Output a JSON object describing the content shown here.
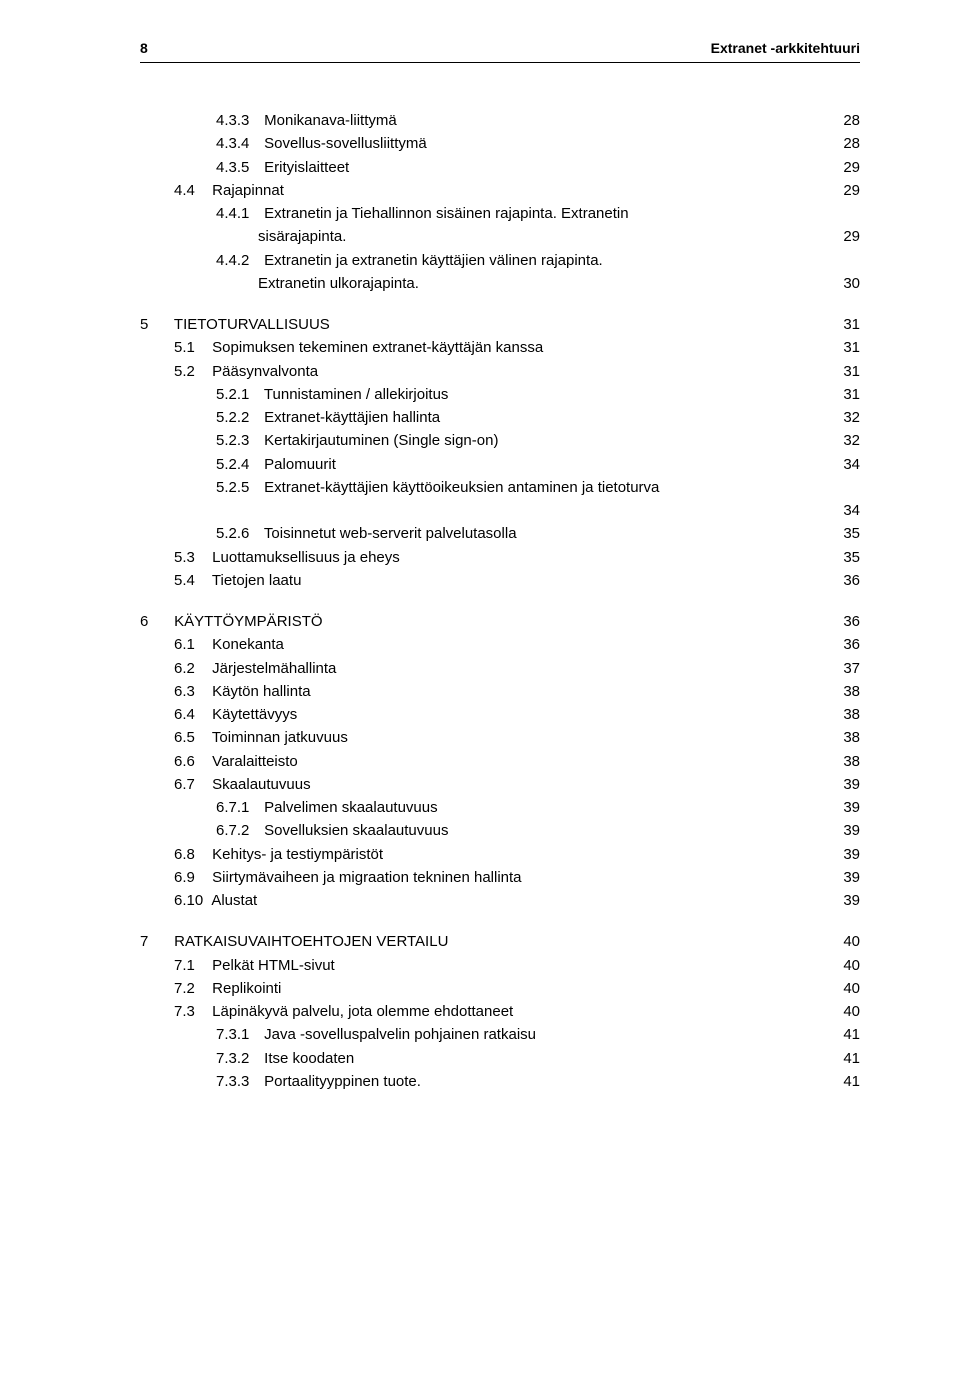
{
  "header": {
    "page_number": "8",
    "title": "Extranet -arkkitehtuuri"
  },
  "toc": [
    {
      "level": "lvl3",
      "first": true,
      "num": "4.3.3",
      "text": "Monikanava-liittymä",
      "page": "28"
    },
    {
      "level": "lvl3",
      "num": "4.3.4",
      "text": "Sovellus-sovellusliittymä",
      "page": "28"
    },
    {
      "level": "lvl3",
      "num": "4.3.5",
      "text": "Erityislaitteet",
      "page": "29"
    },
    {
      "level": "lvl2",
      "num": "4.4",
      "text": "Rajapinnat",
      "page": "29"
    },
    {
      "level": "lvl3",
      "num": "4.4.1",
      "text": "Extranetin ja Tiehallinnon sisäinen rajapinta. Extranetin",
      "page": ""
    },
    {
      "level": "cont",
      "num": "",
      "text": "sisärajapinta.",
      "page": "29"
    },
    {
      "level": "lvl3",
      "num": "4.4.2",
      "text": "Extranetin ja extranetin käyttäjien välinen rajapinta.",
      "page": ""
    },
    {
      "level": "cont",
      "num": "",
      "text": "Extranetin ulkorajapinta.",
      "page": "30"
    },
    {
      "level": "lvl1",
      "num": "5",
      "text": "TIETOTURVALLISUUS",
      "page": "31"
    },
    {
      "level": "lvl2",
      "num": "5.1",
      "text": "Sopimuksen tekeminen extranet-käyttäjän kanssa",
      "page": "31"
    },
    {
      "level": "lvl2",
      "num": "5.2",
      "text": "Pääsynvalvonta",
      "page": "31"
    },
    {
      "level": "lvl3",
      "num": "5.2.1",
      "text": "Tunnistaminen / allekirjoitus",
      "page": "31"
    },
    {
      "level": "lvl3",
      "num": "5.2.2",
      "text": "Extranet-käyttäjien hallinta",
      "page": "32"
    },
    {
      "level": "lvl3",
      "num": "5.2.3",
      "text": "Kertakirjautuminen (Single sign-on)",
      "page": "32"
    },
    {
      "level": "lvl3",
      "num": "5.2.4",
      "text": "Palomuurit",
      "page": "34"
    },
    {
      "level": "lvl3",
      "num": "5.2.5",
      "text": "Extranet-käyttäjien käyttöoikeuksien antaminen ja tietoturva",
      "page": ""
    },
    {
      "level": "contA",
      "num": "",
      "text": "",
      "page": "34"
    },
    {
      "level": "lvl3",
      "num": "5.2.6",
      "text": "Toisinnetut web-serverit palvelutasolla",
      "page": "35"
    },
    {
      "level": "lvl2",
      "num": "5.3",
      "text": "Luottamuksellisuus ja eheys",
      "page": "35"
    },
    {
      "level": "lvl2",
      "num": "5.4",
      "text": "Tietojen laatu",
      "page": "36"
    },
    {
      "level": "lvl1",
      "num": "6",
      "text": "KÄYTTÖYMPÄRISTÖ",
      "page": "36"
    },
    {
      "level": "lvl2",
      "num": "6.1",
      "text": "Konekanta",
      "page": "36"
    },
    {
      "level": "lvl2",
      "num": "6.2",
      "text": "Järjestelmähallinta",
      "page": "37"
    },
    {
      "level": "lvl2",
      "num": "6.3",
      "text": "Käytön hallinta",
      "page": "38"
    },
    {
      "level": "lvl2",
      "num": "6.4",
      "text": "Käytettävyys",
      "page": "38"
    },
    {
      "level": "lvl2",
      "num": "6.5",
      "text": "Toiminnan jatkuvuus",
      "page": "38"
    },
    {
      "level": "lvl2",
      "num": "6.6",
      "text": "Varalaitteisto",
      "page": "38"
    },
    {
      "level": "lvl2",
      "num": "6.7",
      "text": "Skaalautuvuus",
      "page": "39"
    },
    {
      "level": "lvl3",
      "num": "6.7.1",
      "text": "Palvelimen skaalautuvuus",
      "page": "39"
    },
    {
      "level": "lvl3",
      "num": "6.7.2",
      "text": "Sovelluksien skaalautuvuus",
      "page": "39"
    },
    {
      "level": "lvl2",
      "num": "6.8",
      "text": "Kehitys- ja testiympäristöt",
      "page": "39"
    },
    {
      "level": "lvl2",
      "num": "6.9",
      "text": "Siirtymävaiheen ja migraation tekninen hallinta",
      "page": "39"
    },
    {
      "level": "lvl2",
      "num": "6.10",
      "text": "Alustat",
      "page": "39"
    },
    {
      "level": "lvl1",
      "num": "7",
      "text": "RATKAISUVAIHTOEHTOJEN VERTAILU",
      "page": "40"
    },
    {
      "level": "lvl2",
      "num": "7.1",
      "text": "Pelkät HTML-sivut",
      "page": "40"
    },
    {
      "level": "lvl2",
      "num": "7.2",
      "text": "Replikointi",
      "page": "40"
    },
    {
      "level": "lvl2",
      "num": "7.3",
      "text": "Läpinäkyvä palvelu, jota olemme ehdottaneet",
      "page": "40"
    },
    {
      "level": "lvl3",
      "num": "7.3.1",
      "text": "Java -sovelluspalvelin pohjainen ratkaisu",
      "page": "41"
    },
    {
      "level": "lvl3",
      "num": "7.3.2",
      "text": "Itse koodaten",
      "page": "41"
    },
    {
      "level": "lvl3",
      "num": "7.3.3",
      "text": "Portaalityyppinen tuote.",
      "page": "41"
    }
  ]
}
